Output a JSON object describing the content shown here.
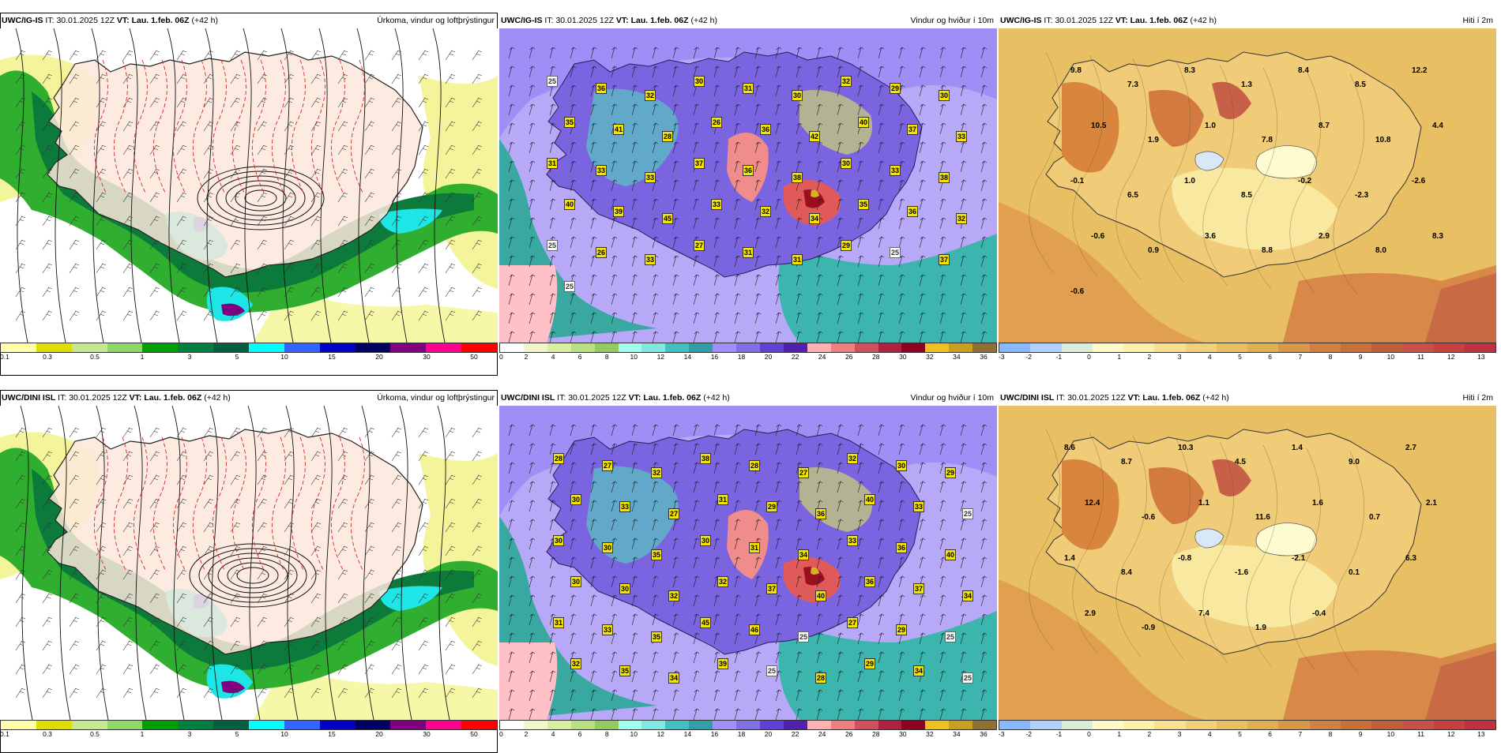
{
  "panels": [
    {
      "id": "precip-top",
      "model": "UWC/IG-IS",
      "it_label": "IT:",
      "it_value": "30.01.2025 12Z",
      "vt_label": "VT:",
      "vt_value": "Lau. 1.feb. 06Z",
      "offset": "(+42 h)",
      "product": "Úrkoma, vindur og loftþrýstingur",
      "colorbar": {
        "colors": [
          "#ffffaa",
          "#dede00",
          "#c6e890",
          "#90d866",
          "#00a000",
          "#008040",
          "#006040",
          "#00ffff",
          "#3264ff",
          "#0000c8",
          "#000064",
          "#800080",
          "#ff0090",
          "#ff0000"
        ],
        "ticks": [
          "0.1",
          "0.3",
          "0.5",
          "1",
          "3",
          "5",
          "10",
          "15",
          "20",
          "30",
          "50"
        ]
      }
    },
    {
      "id": "wind-top",
      "model": "UWC/IG-IS",
      "it_label": "IT:",
      "it_value": "30.01.2025 12Z",
      "vt_label": "VT:",
      "vt_value": "Lau. 1.feb. 06Z",
      "offset": "(+42 h)",
      "product": "Vindur og hviður í 10m",
      "values": [
        "25",
        "36",
        "32",
        "30",
        "31",
        "30",
        "32",
        "29",
        "30",
        "35",
        "41",
        "28",
        "26",
        "36",
        "42",
        "40",
        "37",
        "33",
        "31",
        "33",
        "33",
        "37",
        "36",
        "38",
        "30",
        "33",
        "38",
        "40",
        "39",
        "45",
        "33",
        "32",
        "34",
        "35",
        "36",
        "32",
        "25",
        "26",
        "33",
        "27",
        "31",
        "31",
        "29",
        "25",
        "37",
        "25"
      ],
      "colorbar": {
        "colors": [
          "#ffffff",
          "#f0f7c8",
          "#d8eea0",
          "#b8e080",
          "#90cc60",
          "#a0ffee",
          "#80e8e0",
          "#40c0c0",
          "#30a0a8",
          "#a090ff",
          "#8070e8",
          "#6040d8",
          "#5020b0",
          "#ffb0b0",
          "#f08080",
          "#d05060",
          "#b02040",
          "#900020",
          "#f0c020",
          "#c8a020",
          "#907030"
        ],
        "ticks": [
          "0",
          "2",
          "4",
          "6",
          "8",
          "10",
          "12",
          "14",
          "16",
          "18",
          "20",
          "22",
          "24",
          "26",
          "28",
          "30",
          "32",
          "34",
          "36"
        ]
      }
    },
    {
      "id": "temp-top",
      "model": "UWC/IG-IS",
      "it_label": "IT:",
      "it_value": "30.01.2025 12Z",
      "vt_label": "VT:",
      "vt_value": "Lau. 1.feb. 06Z",
      "offset": "(+42 h)",
      "product": "Hiti í 2m",
      "values": [
        "9.8",
        "7.3",
        "8.3",
        "1.3",
        "8.4",
        "8.5",
        "12.2",
        "10.5",
        "1.9",
        "1.0",
        "7.8",
        "8.7",
        "10.8",
        "4.4",
        "-0.1",
        "6.5",
        "1.0",
        "8.5",
        "-0.2",
        "-2.3",
        "-2.6",
        "-0.6",
        "0.9",
        "3.6",
        "8.8",
        "2.9",
        "8.0",
        "8.3",
        "-0.6"
      ],
      "colorbar": {
        "colors": [
          "#88b8ff",
          "#b0d0ff",
          "#d8eed8",
          "#fffbc8",
          "#fff0a8",
          "#f8e090",
          "#f0d078",
          "#e8c060",
          "#e0b050",
          "#d89848",
          "#d08040",
          "#c87038",
          "#c06038",
          "#c85048",
          "#c84040",
          "#c03040"
        ],
        "ticks": [
          "-3",
          "-2",
          "-1",
          "0",
          "1",
          "2",
          "3",
          "4",
          "5",
          "6",
          "7",
          "8",
          "9",
          "10",
          "11",
          "12",
          "13"
        ]
      }
    },
    {
      "id": "precip-bottom",
      "model": "UWC/DINI ISL",
      "it_label": "IT:",
      "it_value": "30.01.2025 12Z",
      "vt_label": "VT:",
      "vt_value": "Lau. 1.feb. 06Z",
      "offset": "(+42 h)",
      "product": "Úrkoma, vindur og loftþrýstingur",
      "colorbar": {
        "colors": [
          "#ffffaa",
          "#dede00",
          "#c6e890",
          "#90d866",
          "#00a000",
          "#008040",
          "#006040",
          "#00ffff",
          "#3264ff",
          "#0000c8",
          "#000064",
          "#800080",
          "#ff0090",
          "#ff0000"
        ],
        "ticks": [
          "0.1",
          "0.3",
          "0.5",
          "1",
          "3",
          "5",
          "10",
          "15",
          "20",
          "30",
          "50"
        ]
      }
    },
    {
      "id": "wind-bottom",
      "model": "UWC/DINI ISL",
      "it_label": "IT:",
      "it_value": "30.01.2025 12Z",
      "vt_label": "VT:",
      "vt_value": "Lau. 1.feb. 06Z",
      "offset": "(+42 h)",
      "product": "Vindur og hviður í 10m",
      "values": [
        "28",
        "27",
        "32",
        "38",
        "28",
        "27",
        "32",
        "30",
        "29",
        "30",
        "33",
        "27",
        "31",
        "29",
        "36",
        "40",
        "33",
        "25",
        "30",
        "30",
        "35",
        "30",
        "31",
        "34",
        "33",
        "36",
        "40",
        "30",
        "30",
        "32",
        "32",
        "37",
        "40",
        "36",
        "37",
        "34",
        "31",
        "33",
        "35",
        "45",
        "46",
        "25",
        "27",
        "29",
        "25",
        "32",
        "35",
        "34",
        "39",
        "25",
        "28",
        "29",
        "34",
        "25"
      ],
      "colorbar": {
        "colors": [
          "#ffffff",
          "#f0f7c8",
          "#d8eea0",
          "#b8e080",
          "#90cc60",
          "#a0ffee",
          "#80e8e0",
          "#40c0c0",
          "#30a0a8",
          "#a090ff",
          "#8070e8",
          "#6040d8",
          "#5020b0",
          "#ffb0b0",
          "#f08080",
          "#d05060",
          "#b02040",
          "#900020",
          "#f0c020",
          "#c8a020",
          "#907030"
        ],
        "ticks": [
          "0",
          "2",
          "4",
          "6",
          "8",
          "10",
          "12",
          "14",
          "16",
          "18",
          "20",
          "22",
          "24",
          "26",
          "28",
          "30",
          "32",
          "34",
          "36"
        ]
      }
    },
    {
      "id": "temp-bottom",
      "model": "UWC/DINI ISL",
      "it_label": "IT:",
      "it_value": "30.01.2025 12Z",
      "vt_label": "VT:",
      "vt_value": "Lau. 1.feb. 06Z",
      "offset": "(+42 h)",
      "product": "Hiti í 2m",
      "values": [
        "8.6",
        "8.7",
        "10.3",
        "4.5",
        "1.4",
        "9.0",
        "2.7",
        "12.4",
        "-0.6",
        "1.1",
        "11.6",
        "1.6",
        "0.7",
        "2.1",
        "1.4",
        "8.4",
        "-0.8",
        "-1.6",
        "-2.1",
        "0.1",
        "6.3",
        "2.9",
        "-0.9",
        "7.4",
        "1.9",
        "-0.4"
      ],
      "colorbar": {
        "colors": [
          "#88b8ff",
          "#b0d0ff",
          "#d8eed8",
          "#fffbc8",
          "#fff0a8",
          "#f8e090",
          "#f0d078",
          "#e8c060",
          "#e0b050",
          "#d89848",
          "#d08040",
          "#c87038",
          "#c06038",
          "#c85048",
          "#c84040",
          "#c03040"
        ],
        "ticks": [
          "-3",
          "-2",
          "-1",
          "0",
          "1",
          "2",
          "3",
          "4",
          "5",
          "6",
          "7",
          "8",
          "9",
          "10",
          "11",
          "12",
          "13"
        ]
      }
    }
  ]
}
